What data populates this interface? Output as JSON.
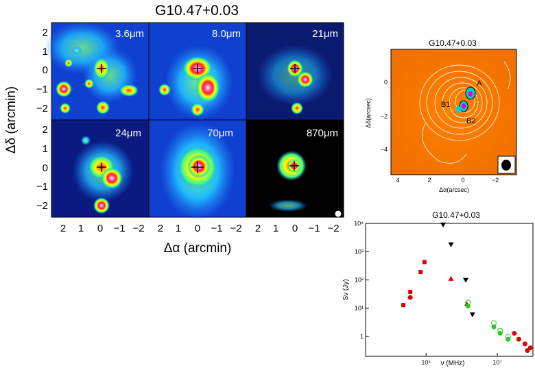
{
  "left_panel": {
    "title": "G10.47+0.03",
    "y_label": "Δδ  (arcmin)",
    "x_label": "Δα  (arcmin)",
    "y_ticks_top": [
      "2",
      "1",
      "0",
      "−1",
      "−2"
    ],
    "y_ticks_bottom": [
      "2",
      "1",
      "0",
      "−1",
      "−2"
    ],
    "x_ticks": [
      "2",
      "1",
      "0",
      "−1",
      "−2"
    ],
    "bands": [
      "3.6μm",
      "8.0μm",
      "21μm",
      "24μm",
      "70μm",
      "870μm"
    ]
  },
  "map_panel": {
    "title": "G10.47+0.03",
    "y_label": "Δδ(arcsec)",
    "x_label": "Δα(arcsec)",
    "y_ticks": [
      "0",
      "−2",
      "−4"
    ],
    "x_ticks": [
      "4",
      "2",
      "0",
      "−2"
    ],
    "sources": [
      "A",
      "B1",
      "B2"
    ]
  },
  "chart_data": {
    "type": "scatter",
    "title": "G10.47+0.03",
    "xlabel": "ν (MHz)",
    "ylabel": "Sν (Jy)",
    "x_scale": "log",
    "y_scale": "log",
    "xlim": [
      2000,
      100000000
    ],
    "ylim": [
      0.2,
      10000
    ],
    "x_tick_labels": [
      "10⁵",
      "10⁷"
    ],
    "y_tick_labels": [
      "10⁴",
      "10³",
      "10²",
      "10¹",
      "1"
    ],
    "series": [
      {
        "name": "red squares",
        "marker": "square",
        "color": "#e00000",
        "points": [
          [
            23000,
            13
          ],
          [
            36000,
            38
          ],
          [
            70000,
            190
          ],
          [
            90000,
            430
          ]
        ]
      },
      {
        "name": "red circles",
        "marker": "circle",
        "color": "#e00000",
        "points": [
          [
            36000,
            24
          ],
          [
            30000000,
            1.3
          ],
          [
            40000000,
            0.8
          ],
          [
            60000000,
            0.55
          ],
          [
            85000000,
            0.4
          ],
          [
            70000000,
            0.32
          ]
        ]
      },
      {
        "name": "red triangle",
        "marker": "triangle",
        "color": "#e00000",
        "points": [
          [
            500000,
            110
          ],
          [
            1400000,
            14
          ]
        ]
      },
      {
        "name": "black down-triangles",
        "marker": "down-triangle",
        "color": "#000000",
        "points": [
          [
            300000,
            9000
          ],
          [
            500000,
            1800
          ],
          [
            1300000,
            100
          ],
          [
            2000000,
            6
          ]
        ]
      },
      {
        "name": "green filled circles",
        "marker": "circle",
        "color": "#22cc22",
        "points": [
          [
            1500000,
            12
          ],
          [
            8000000,
            2.2
          ],
          [
            12000000,
            1.3
          ],
          [
            20000000,
            0.8
          ]
        ]
      },
      {
        "name": "green open circles",
        "marker": "open-circle",
        "color": "#22cc22",
        "points": [
          [
            1500000,
            16
          ],
          [
            8000000,
            3
          ],
          [
            12000000,
            1.6
          ],
          [
            20000000,
            1.0
          ]
        ]
      }
    ]
  }
}
